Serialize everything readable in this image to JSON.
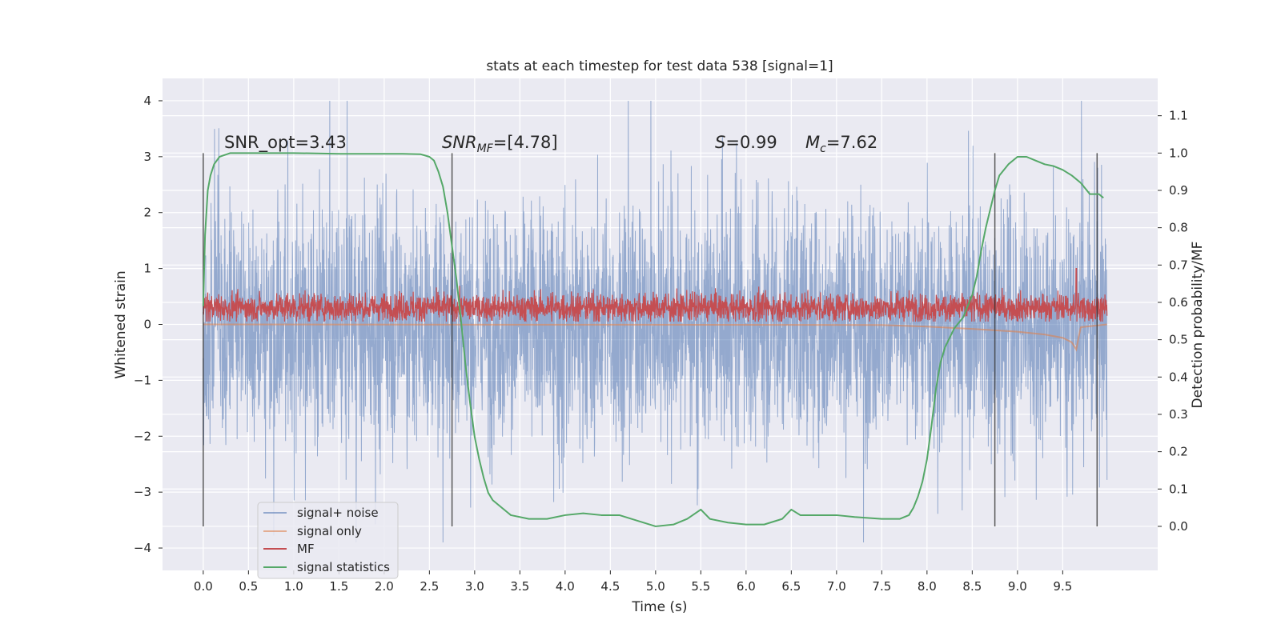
{
  "chart_data": {
    "type": "line",
    "title": "stats at each timestep for test data 538 [signal=1]",
    "xlabel": "Time (s)",
    "ylabel": "Whitened strain",
    "y2label": "Detection probability/MF",
    "xlim": [
      -0.45,
      10.55
    ],
    "ylim": [
      -4.4,
      4.4
    ],
    "y2lim": [
      -0.118,
      1.2
    ],
    "x_ticks": [
      "0.0",
      "0.5",
      "1.0",
      "1.5",
      "2.0",
      "2.5",
      "3.0",
      "3.5",
      "4.0",
      "4.5",
      "5.0",
      "5.5",
      "6.0",
      "6.5",
      "7.0",
      "7.5",
      "8.0",
      "8.5",
      "9.0",
      "9.5"
    ],
    "x_tick_values": [
      0,
      0.5,
      1,
      1.5,
      2,
      2.5,
      3,
      3.5,
      4,
      4.5,
      5,
      5.5,
      6,
      6.5,
      7,
      7.5,
      8,
      8.5,
      9,
      9.5
    ],
    "y_ticks": [
      "4",
      "3",
      "2",
      "1",
      "0",
      "−1",
      "−2",
      "−3",
      "−4"
    ],
    "y_tick_values": [
      4,
      3,
      2,
      1,
      0,
      -1,
      -2,
      -3,
      -4
    ],
    "y2_ticks": [
      "1.1",
      "1.0",
      "0.9",
      "0.8",
      "0.7",
      "0.6",
      "0.5",
      "0.4",
      "0.3",
      "0.2",
      "0.1",
      "0.0"
    ],
    "y2_tick_values": [
      1.1,
      1.0,
      0.9,
      0.8,
      0.7,
      0.6,
      0.5,
      0.4,
      0.3,
      0.2,
      0.1,
      0.0
    ],
    "grid": true,
    "legend_position": "lower-left",
    "series": [
      {
        "name": "signal+ noise",
        "axis": "left",
        "color": "#4c72b0",
        "description": "whitened noisy strain, time 0 to 9.99 s, roughly -3.9 to 4.0",
        "x_range": [
          0,
          9.99
        ],
        "y_range": [
          -3.9,
          4.0
        ]
      },
      {
        "name": "signal only",
        "axis": "left",
        "color": "#dd8452",
        "x": [
          0,
          7.5,
          8.0,
          8.5,
          9.0,
          9.3,
          9.5,
          9.6,
          9.65,
          9.68,
          9.7,
          9.99
        ],
        "y": [
          0,
          -0.01,
          -0.04,
          -0.08,
          -0.13,
          -0.18,
          -0.24,
          -0.32,
          -0.45,
          -0.2,
          -0.05,
          0
        ]
      },
      {
        "name": "MF",
        "axis": "left",
        "color": "#c44e52",
        "description": "matched filter output around 0.3, range about 0.05 to 0.8, spike near 9.65 s",
        "x_range": [
          0,
          9.99
        ],
        "y_range": [
          0.05,
          0.8
        ]
      },
      {
        "name": "signal statistics",
        "axis": "right",
        "color": "#55a868",
        "x": [
          0.0,
          0.02,
          0.05,
          0.08,
          0.12,
          0.18,
          0.3,
          0.5,
          1.0,
          1.5,
          2.0,
          2.2,
          2.4,
          2.5,
          2.55,
          2.6,
          2.65,
          2.7,
          2.75,
          2.8,
          2.85,
          2.9,
          2.95,
          3.0,
          3.05,
          3.1,
          3.15,
          3.2,
          3.3,
          3.4,
          3.6,
          3.8,
          4.0,
          4.2,
          4.4,
          4.6,
          4.8,
          5.0,
          5.2,
          5.35,
          5.5,
          5.6,
          5.8,
          6.0,
          6.2,
          6.4,
          6.5,
          6.6,
          6.8,
          7.0,
          7.2,
          7.5,
          7.7,
          7.8,
          7.85,
          7.9,
          7.95,
          8.0,
          8.05,
          8.1,
          8.15,
          8.2,
          8.3,
          8.4,
          8.5,
          8.55,
          8.6,
          8.65,
          8.7,
          8.75,
          8.8,
          8.9,
          9.0,
          9.1,
          9.2,
          9.3,
          9.4,
          9.5,
          9.6,
          9.7,
          9.8,
          9.9,
          9.95
        ],
        "y": [
          0.59,
          0.78,
          0.9,
          0.94,
          0.97,
          0.99,
          1.0,
          1.0,
          1.0,
          0.998,
          0.998,
          0.998,
          0.997,
          0.99,
          0.98,
          0.95,
          0.91,
          0.84,
          0.75,
          0.66,
          0.55,
          0.43,
          0.33,
          0.24,
          0.18,
          0.13,
          0.09,
          0.07,
          0.05,
          0.03,
          0.02,
          0.02,
          0.03,
          0.035,
          0.03,
          0.03,
          0.015,
          0.0,
          0.005,
          0.02,
          0.045,
          0.02,
          0.01,
          0.005,
          0.005,
          0.02,
          0.045,
          0.03,
          0.03,
          0.03,
          0.025,
          0.02,
          0.02,
          0.03,
          0.05,
          0.08,
          0.12,
          0.18,
          0.27,
          0.37,
          0.44,
          0.48,
          0.53,
          0.56,
          0.62,
          0.67,
          0.74,
          0.8,
          0.85,
          0.9,
          0.94,
          0.97,
          0.99,
          0.99,
          0.98,
          0.97,
          0.965,
          0.955,
          0.94,
          0.92,
          0.89,
          0.89,
          0.88
        ]
      }
    ],
    "vertical_lines_x": [
      0.0,
      2.75,
      8.75,
      9.88
    ],
    "annotations": [
      {
        "text": "SNR_opt=3.43",
        "x": 0.2
      },
      {
        "main": "SNR",
        "sub": "MF",
        "rest": "=[4.78]",
        "x": 2.6
      },
      {
        "main": "S",
        "rest": "=0.99",
        "x": 5.6
      },
      {
        "main": "M",
        "sub": "c",
        "rest": "=7.62",
        "x": 6.6
      }
    ]
  }
}
